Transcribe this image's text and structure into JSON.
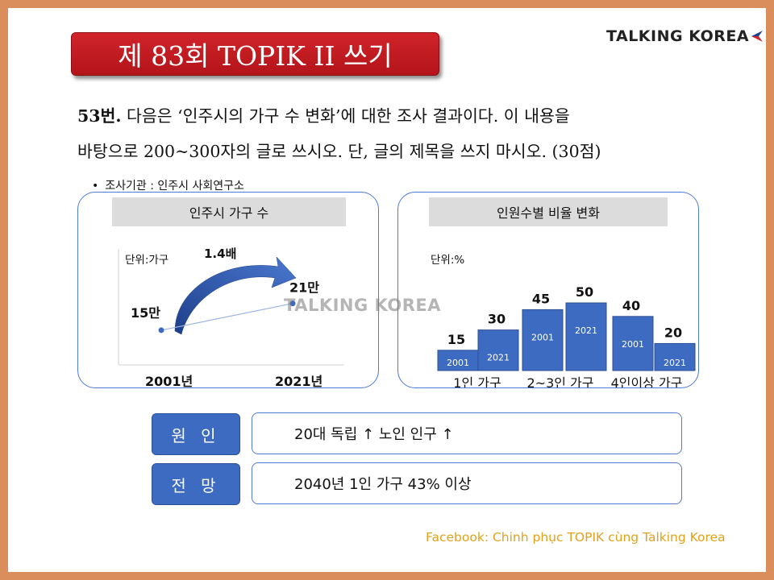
{
  "brand": "TALKING KOREA",
  "title": "제 83회 TOPIK II 쓰기",
  "question": {
    "number": "53번.",
    "line1_rest": " 다음은 ‘인주시의 가구 수 변화’에 대한 조사 결과이다. 이 내용을",
    "line2": "바탕으로 200~300자의 글로 쓰시오. 단, 글의 제목을 쓰지 마시오. (30점)"
  },
  "survey": "조사기관 : 인주시 사회연구소",
  "watermark": "TALKING KOREA",
  "colors": {
    "bar": "#3e6bc2",
    "panel_border": "#4f7ad3",
    "title_red": "#c41c22",
    "footer": "#e0a21b"
  },
  "chart_data": [
    {
      "type": "line",
      "title": "인주시 가구 수",
      "ylabel": "단위:가구",
      "categories": [
        "2001년",
        "2021년"
      ],
      "values": [
        15,
        21
      ],
      "value_labels": [
        "15만",
        "21만"
      ],
      "unit": "만",
      "annotation": "1.4배",
      "ylim": [
        0,
        26
      ]
    },
    {
      "type": "bar",
      "title": "인원수별 비율 변화",
      "ylabel": "단위:%",
      "groups": [
        "1인 가구",
        "2~3인 가구",
        "4인이상 가구"
      ],
      "bars": [
        {
          "group": 0,
          "year": "2001",
          "value": 15
        },
        {
          "group": 0,
          "year": "2021",
          "value": 30
        },
        {
          "group": 1,
          "year": "2001",
          "value": 45
        },
        {
          "group": 1,
          "year": "2021",
          "value": 50
        },
        {
          "group": 2,
          "year": "2001",
          "value": 40
        },
        {
          "group": 2,
          "year": "2021",
          "value": 20
        }
      ],
      "ylim": [
        0,
        60
      ]
    }
  ],
  "rows": [
    {
      "label": "원 인",
      "text": "20대 독립 ↑  노인 인구 ↑"
    },
    {
      "label": "전 망",
      "text": "2040년 1인 가구 43% 이상"
    }
  ],
  "footer": "Facebook: Chinh phục TOPIK cùng Talking Korea"
}
